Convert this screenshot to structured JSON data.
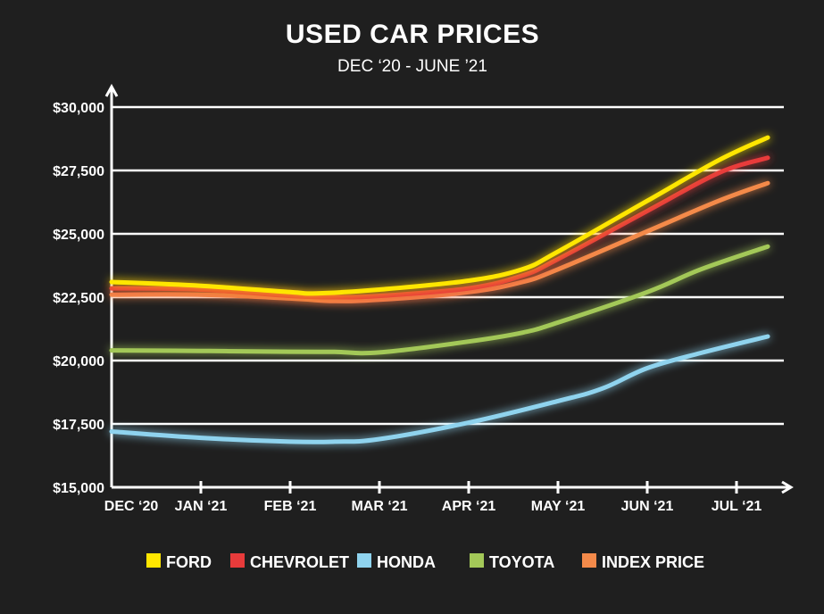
{
  "chart_data": {
    "type": "line",
    "title": "USED CAR PRICES",
    "subtitle": "DEC ‘20 - JUNE ’21",
    "xlabel": "",
    "ylabel": "",
    "categories": [
      "DEC ‘20",
      "JAN ‘21",
      "FEB ‘21",
      "MAR ‘21",
      "APR ‘21",
      "MAY ‘21",
      "JUN ‘21",
      "JUL ‘21"
    ],
    "x_extent": [
      0,
      7.35
    ],
    "ylim": [
      15000,
      30000
    ],
    "yticks": [
      15000,
      17500,
      20000,
      22500,
      25000,
      27500,
      30000
    ],
    "ytick_labels": [
      "$15,000",
      "$17,500",
      "$20,000",
      "$22,500",
      "$25,000",
      "$27,500",
      "$30,000"
    ],
    "grid": true,
    "legend_position": "bottom",
    "background_color": "#1f1f1f",
    "series": [
      {
        "name": "FORD",
        "color": "#ffe600",
        "x": [
          0,
          1,
          2,
          2.3,
          3,
          4,
          4.6,
          5,
          6,
          6.8,
          7.35
        ],
        "values": [
          23100,
          22950,
          22700,
          22650,
          22800,
          23150,
          23600,
          24300,
          26300,
          27900,
          28800
        ]
      },
      {
        "name": "CHEVROLET",
        "color": "#e83b3b",
        "x": [
          0,
          1,
          2,
          2.5,
          3,
          4,
          4.6,
          5,
          6,
          6.8,
          7.35
        ],
        "values": [
          22850,
          22800,
          22550,
          22500,
          22550,
          22850,
          23350,
          24000,
          25900,
          27400,
          28000
        ]
      },
      {
        "name": "HONDA",
        "color": "#8fd3ee",
        "x": [
          0,
          1,
          2,
          2.5,
          3,
          4,
          5,
          5.5,
          6,
          6.6,
          7.35
        ],
        "values": [
          17200,
          16950,
          16800,
          16800,
          16900,
          17550,
          18400,
          18900,
          19700,
          20300,
          20950
        ]
      },
      {
        "name": "TOYOTA",
        "color": "#a3c858",
        "x": [
          0,
          1,
          2,
          2.5,
          3,
          4,
          4.6,
          5,
          6,
          6.6,
          7.35
        ],
        "values": [
          20400,
          20380,
          20350,
          20340,
          20320,
          20750,
          21100,
          21500,
          22700,
          23600,
          24500
        ]
      },
      {
        "name": "INDEX PRICE",
        "color": "#f48a4a",
        "x": [
          0,
          1,
          2,
          2.5,
          3,
          4,
          4.6,
          5,
          6,
          6.8,
          7.35
        ],
        "values": [
          22600,
          22600,
          22450,
          22350,
          22400,
          22700,
          23100,
          23600,
          25100,
          26300,
          27000
        ]
      }
    ]
  }
}
